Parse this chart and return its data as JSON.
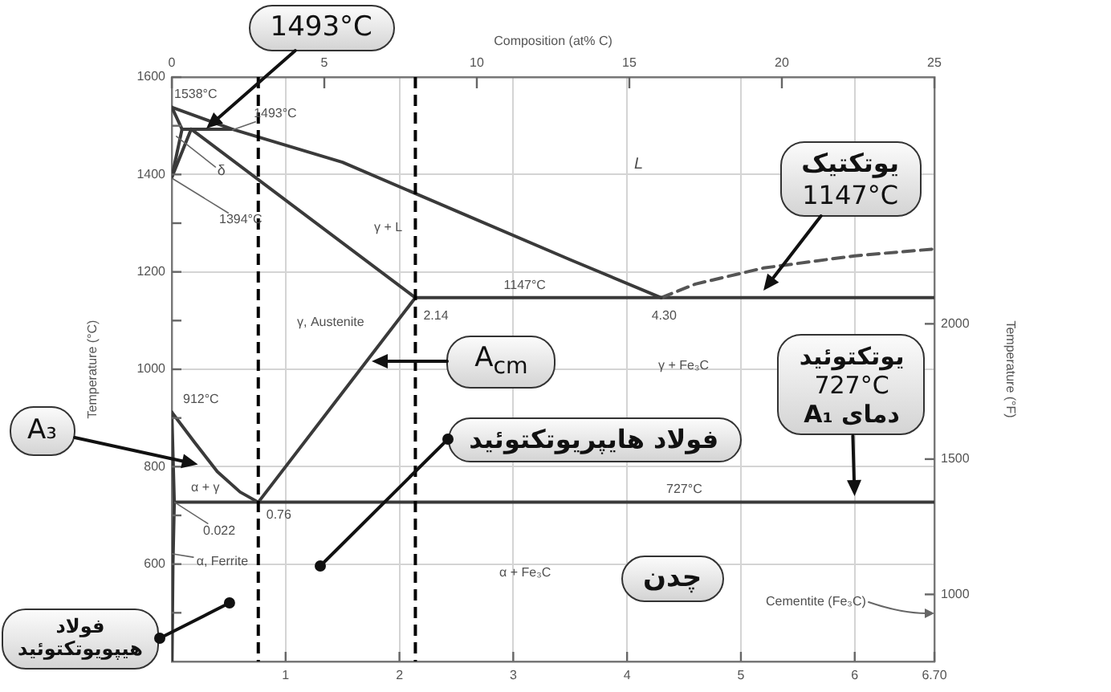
{
  "chart_data": {
    "type": "line",
    "x2label": "Composition (at% C)",
    "ylabel": "Temperature (°C)",
    "y2label": "Temperature (°F)",
    "xlim": [
      0,
      6.7
    ],
    "xticks": [
      1,
      2,
      3,
      4,
      5,
      6,
      {
        "value": 6.7,
        "label": "6.70"
      }
    ],
    "x2lim": [
      0,
      25
    ],
    "x2ticks": [
      0,
      5,
      10,
      15,
      20,
      25
    ],
    "ylim": [
      400,
      1600
    ],
    "yticks": [
      {
        "value": 500,
        "label": null
      },
      600,
      {
        "value": 700,
        "label": null
      },
      800,
      {
        "value": 900,
        "label": null
      },
      1000,
      {
        "value": 1100,
        "label": null
      },
      1200,
      {
        "value": 1300,
        "label": null
      },
      1400,
      {
        "value": 1500,
        "label": null
      },
      1600
    ],
    "y2lim": [
      752,
      2912
    ],
    "y2ticks": [
      1000,
      1500,
      2000
    ],
    "grid": true,
    "marker": "none",
    "series": [
      {
        "color": "#3a3a3a",
        "x": [
          0,
          0.53,
          1.5,
          2.5,
          3.5,
          4.3
        ],
        "values": [
          1538,
          1493,
          1425,
          1325,
          1225,
          1147
        ]
      },
      {
        "color": "#555555",
        "line_style": "dashed",
        "x": [
          4.3,
          4.6,
          5.2,
          6.0,
          6.7
        ],
        "values": [
          1147,
          1175,
          1208,
          1233,
          1247
        ]
      },
      {
        "color": "#3a3a3a",
        "x": [
          0,
          0.09
        ],
        "values": [
          1538,
          1493
        ]
      },
      {
        "color": "#3a3a3a",
        "x": [
          0.09,
          0.53
        ],
        "values": [
          1493,
          1493
        ]
      },
      {
        "color": "#3a3a3a",
        "x": [
          0.17,
          2.14
        ],
        "values": [
          1493,
          1147
        ]
      },
      {
        "color": "#3a3a3a",
        "x": [
          0,
          0.09
        ],
        "values": [
          1394,
          1493
        ]
      },
      {
        "color": "#3a3a3a",
        "x": [
          0,
          0.17
        ],
        "values": [
          1394,
          1493
        ]
      },
      {
        "color": "#3a3a3a",
        "x": [
          2.14,
          6.7
        ],
        "values": [
          1147,
          1147
        ]
      },
      {
        "color": "#3a3a3a",
        "x": [
          0.76,
          2.14
        ],
        "values": [
          727,
          1147
        ]
      },
      {
        "color": "#3a3a3a",
        "x": [
          0,
          0.2,
          0.4,
          0.6,
          0.76
        ],
        "values": [
          912,
          850,
          790,
          748,
          727
        ]
      },
      {
        "color": "#3a3a3a",
        "x": [
          0,
          0.022,
          0.01,
          0.004,
          0
        ],
        "values": [
          912,
          727,
          600,
          500,
          400
        ]
      },
      {
        "color": "#3a3a3a",
        "x": [
          0.022,
          6.7
        ],
        "values": [
          727,
          727
        ]
      }
    ],
    "ref_lines": [
      {
        "axis": "x",
        "value": 0.76,
        "color": "#000000",
        "line_style": "dashed"
      },
      {
        "axis": "x",
        "value": 2.14,
        "color": "#000000",
        "line_style": "dashed"
      }
    ],
    "annotations": [
      {
        "text": "1493°C",
        "x": 0.3,
        "y": 1493
      },
      {
        "text": "یوتکتیک\n1147°C",
        "x": 5.2,
        "y": 1160
      },
      {
        "text": "A$_{cm}$",
        "x": 1.75,
        "y": 1016
      },
      "A₃",
      {
        "text": "فولاد هایپریوتکتوئید",
        "x": 1.3,
        "y": 595
      },
      "چدن",
      {
        "text": "یوتکتوئید\n727°C\nدمای A₁",
        "x": 6.0,
        "y": 740
      },
      {
        "text": "فولاد هیپویوتکتوئید",
        "x": 0.5,
        "y": 520
      },
      {
        "text": "1538°C",
        "x": 0,
        "y": 1538
      },
      {
        "text": "1493°C",
        "x": 0.53,
        "y": 1493
      },
      {
        "text": "δ",
        "x": 0.04,
        "y": 1480
      },
      {
        "text": "1394°C",
        "x": 0,
        "y": 1394
      },
      "γ + L",
      "L",
      {
        "text": "1147°C",
        "x": 3.1,
        "y": 1147
      },
      {
        "text": "2.14",
        "x": 2.14,
        "y": 1147
      },
      {
        "text": "4.30",
        "x": 4.3,
        "y": 1147
      },
      "γ, Austenite",
      {
        "text": "912°C",
        "x": 0,
        "y": 912
      },
      "α + γ",
      {
        "text": "0.76",
        "x": 0.76,
        "y": 727
      },
      {
        "text": "0.022",
        "x": 0.022,
        "y": 727
      },
      {
        "text": "α, Ferrite",
        "x": 0.005,
        "y": 620
      },
      "γ + Fe₃C",
      {
        "text": "727°C",
        "x": 4.5,
        "y": 727
      },
      "α + Fe₃C",
      "Cementite (Fe₃C)"
    ]
  }
}
